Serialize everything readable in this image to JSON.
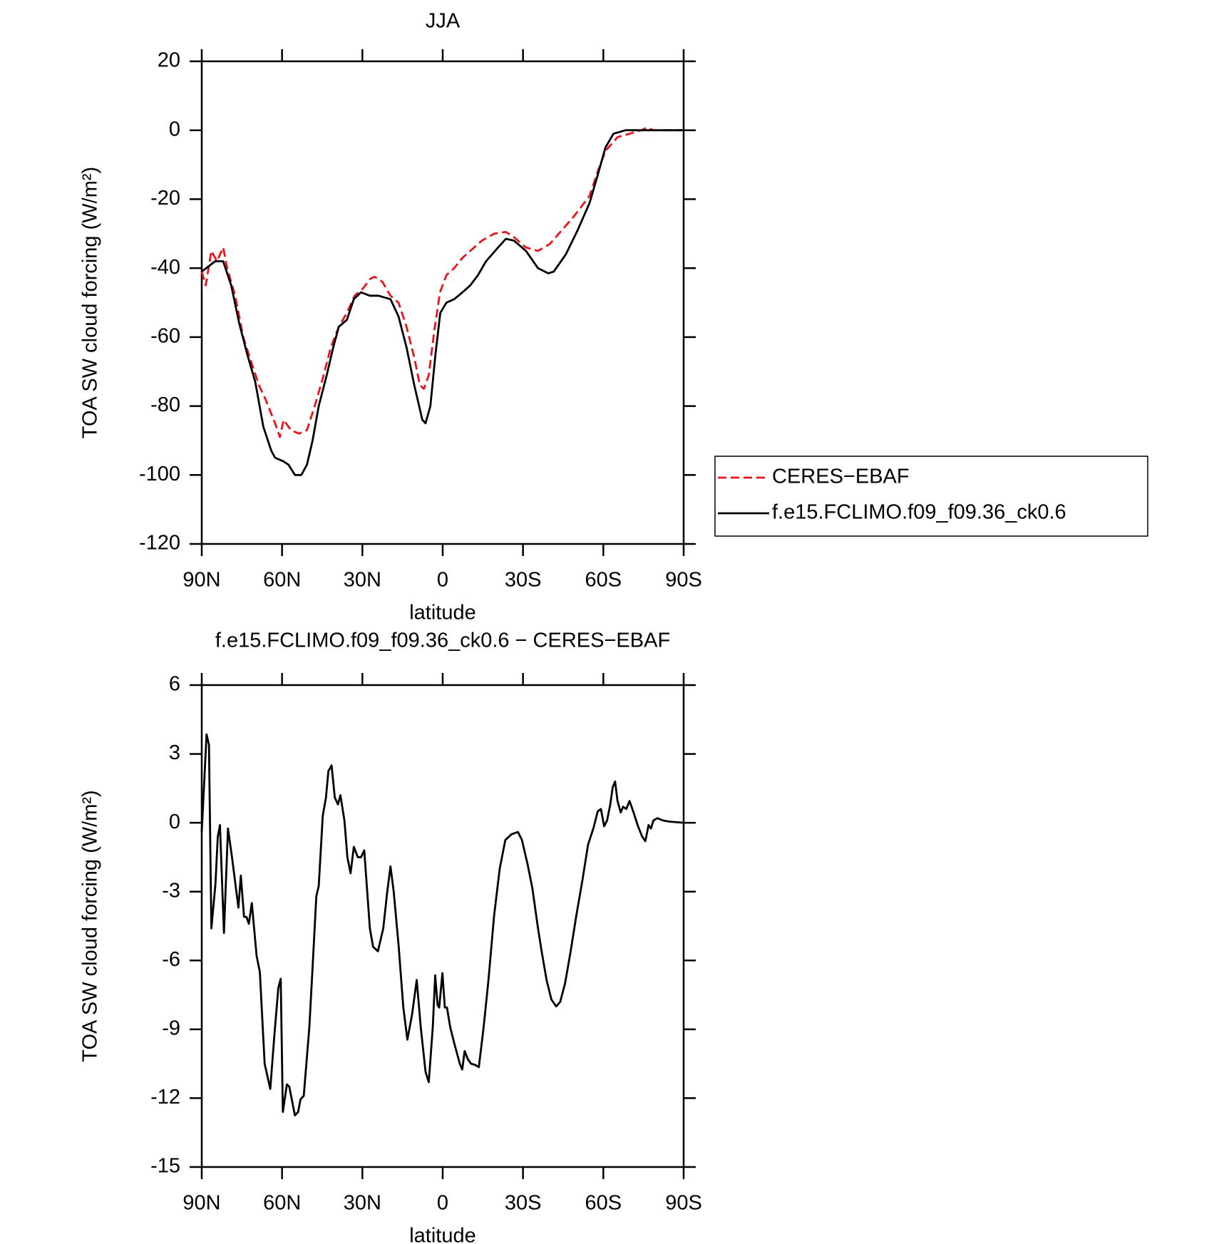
{
  "chart_data": [
    {
      "type": "line",
      "title": "JJA",
      "x_label": "latitude",
      "y_label": "TOA SW cloud forcing (W/m²)",
      "xlim": [
        90,
        -90
      ],
      "xticks": [
        {
          "value": 90,
          "label": "90N"
        },
        {
          "value": 60,
          "label": "60N"
        },
        {
          "value": 30,
          "label": "30N"
        },
        0,
        {
          "value": -30,
          "label": "30S"
        },
        {
          "value": -60,
          "label": "60S"
        },
        {
          "value": -90,
          "label": "90S"
        }
      ],
      "ylim": [
        -120,
        20
      ],
      "yticks": [
        -120,
        -100,
        -80,
        -60,
        -40,
        -20,
        0,
        20
      ],
      "legend": "right",
      "series": [
        {
          "name": "CERES−EBAF",
          "color": "#e8141c",
          "line_style": "dashed",
          "x": [
            90,
            88.5,
            86.4,
            84.3,
            82,
            80.5,
            77.5,
            74.5,
            71.6,
            68.6,
            66.2,
            62.6,
            60.8,
            59.4,
            56.7,
            53.7,
            50.7,
            47.8,
            44.8,
            41.8,
            38.8,
            35.8,
            32.9,
            29.9,
            26.9,
            25.4,
            22.5,
            19.5,
            16.5,
            13.5,
            10.6,
            8.5,
            7,
            5.2,
            3.1,
            1,
            -1.4,
            -4.3,
            -7.4,
            -10.3,
            -14.7,
            -19.2,
            -23.6,
            -26.6,
            -31.1,
            -35.6,
            -40,
            -44.5,
            -49,
            -54.9,
            -57.9,
            -60.8,
            -65.3,
            -69.8,
            -74.2,
            -76.3,
            -78.7,
            -90
          ],
          "values": [
            -41,
            -45,
            -35,
            -38,
            -34,
            -40,
            -48,
            -60,
            -67,
            -74,
            -78,
            -85,
            -89,
            -84,
            -87,
            -88,
            -87,
            -80,
            -72,
            -63,
            -57,
            -53,
            -48,
            -46,
            -43,
            -42.5,
            -44,
            -48,
            -50,
            -57,
            -66,
            -74,
            -75,
            -71,
            -58,
            -47,
            -42,
            -40,
            -37,
            -35,
            -32,
            -30,
            -29.5,
            -31,
            -34,
            -35,
            -33,
            -29,
            -25,
            -19,
            -12,
            -6,
            -2,
            -1,
            0,
            0.8,
            0,
            0
          ]
        },
        {
          "name": "f.e15.FCLIMO.f09_f09.36_ck0.6",
          "color": "#000000",
          "line_style": "solid",
          "x": [
            90,
            85,
            82,
            79,
            76,
            73,
            70,
            67,
            64,
            62.6,
            59.6,
            57.6,
            55.2,
            52.8,
            50.7,
            48.6,
            46.3,
            43.3,
            40.9,
            38.8,
            35.8,
            33.2,
            30.5,
            27.2,
            24,
            19.5,
            16.5,
            13.5,
            10.6,
            7.6,
            6.4,
            4.6,
            2.7,
            0.9,
            -1.4,
            -4.3,
            -7.4,
            -10.3,
            -13.2,
            -16.2,
            -20.7,
            -23.6,
            -26.6,
            -31.1,
            -35.6,
            -39.4,
            -41.5,
            -46,
            -50.4,
            -54.9,
            -57.9,
            -60.8,
            -63.8,
            -68.3,
            -90
          ],
          "values": [
            -41,
            -38,
            -38,
            -45,
            -56,
            -65,
            -73,
            -86,
            -93,
            -95,
            -96,
            -97,
            -100,
            -100,
            -97,
            -90,
            -80,
            -71,
            -63,
            -57,
            -55,
            -49,
            -47,
            -48,
            -48,
            -49,
            -54,
            -63,
            -74,
            -84,
            -85,
            -80,
            -65,
            -53,
            -50,
            -49,
            -47,
            -45,
            -42,
            -38,
            -34,
            -31.5,
            -32,
            -35,
            -40,
            -41.5,
            -41,
            -36,
            -29,
            -21,
            -13,
            -5,
            -1,
            0,
            0
          ]
        }
      ]
    },
    {
      "type": "line",
      "title": "f.e15.FCLIMO.f09_f09.36_ck0.6 − CERES−EBAF",
      "x_label": "latitude",
      "y_label": "TOA SW cloud forcing (W/m²)",
      "xlim": [
        90,
        -90
      ],
      "xticks": [
        {
          "value": 90,
          "label": "90N"
        },
        {
          "value": 60,
          "label": "60N"
        },
        {
          "value": 30,
          "label": "30N"
        },
        0,
        {
          "value": -30,
          "label": "30S"
        },
        {
          "value": -60,
          "label": "60S"
        },
        {
          "value": -90,
          "label": "90S"
        }
      ],
      "ylim": [
        -15,
        6
      ],
      "yticks": [
        -15,
        -12,
        -9,
        -6,
        -3,
        0,
        3,
        6
      ],
      "x": [
        90,
        88.2,
        87.3,
        86.4,
        84.9,
        84,
        83.2,
        81.7,
        80.2,
        78.7,
        76.3,
        75.4,
        74.2,
        73.3,
        72.4,
        71.3,
        69.5,
        68.3,
        66.5,
        64.4,
        62.9,
        61.4,
        60.5,
        59.7,
        58.2,
        57.3,
        55.2,
        54,
        53.1,
        51.9,
        49.8,
        48.6,
        47.2,
        46.3,
        44.8,
        43.6,
        42.7,
        41.5,
        40.3,
        39.1,
        38.2,
        36.7,
        35.6,
        34.4,
        33.2,
        31.7,
        30.5,
        29.3,
        27.2,
        26,
        24.2,
        22.2,
        20.7,
        19.5,
        18.3,
        16.5,
        14.7,
        13.2,
        11.5,
        9.7,
        8.2,
        6.4,
        5.2,
        3.7,
        2.8,
        1.9,
        1.3,
        0.1,
        -0.8,
        -1.6,
        -2.8,
        -4.3,
        -6.4,
        -7.3,
        -8.2,
        -9.4,
        -10.6,
        -12.1,
        -13.5,
        -15.3,
        -17.1,
        -19.2,
        -21.3,
        -23.4,
        -25.7,
        -28.1,
        -29.6,
        -31.7,
        -33.5,
        -35.6,
        -37.1,
        -38.8,
        -40.6,
        -42.4,
        -43.9,
        -45.7,
        -47.8,
        -49.9,
        -52.2,
        -54.3,
        -56.4,
        -57.9,
        -59.1,
        -60.3,
        -61.4,
        -62.6,
        -63.5,
        -64.4,
        -65.3,
        -66.5,
        -67.4,
        -68.6,
        -69.8,
        -71.3,
        -72.8,
        -74.5,
        -75.7,
        -76.9,
        -77.8,
        -78.7,
        -80.2,
        -82.3,
        -84.7,
        -90
      ],
      "series": [
        {
          "color": "#000000",
          "line_style": "solid",
          "values": [
            -0.4,
            3.85,
            3.4,
            -4.6,
            -2.7,
            -0.6,
            -0.1,
            -4.8,
            -0.25,
            -1.5,
            -3.7,
            -2.3,
            -4.1,
            -4.1,
            -4.4,
            -3.5,
            -5.8,
            -6.5,
            -10.5,
            -11.6,
            -9.3,
            -7.2,
            -6.8,
            -12.6,
            -11.4,
            -11.5,
            -12.75,
            -12.6,
            -12.05,
            -11.9,
            -8.9,
            -6.3,
            -3.2,
            -2.75,
            0.3,
            1.1,
            2.25,
            2.5,
            1.1,
            0.8,
            1.2,
            0.1,
            -1.5,
            -2.2,
            -1.05,
            -1.5,
            -1.5,
            -1.2,
            -4.6,
            -5.4,
            -5.6,
            -4.6,
            -3,
            -1.9,
            -3,
            -5.3,
            -8.05,
            -9.45,
            -8.4,
            -6.85,
            -8.9,
            -10.85,
            -11.3,
            -8.9,
            -6.65,
            -7.95,
            -8.05,
            -6.55,
            -8.05,
            -8.05,
            -8.9,
            -9.6,
            -10.5,
            -10.75,
            -9.95,
            -10.3,
            -10.5,
            -10.55,
            -10.65,
            -8.9,
            -6.85,
            -4.05,
            -2,
            -0.75,
            -0.5,
            -0.4,
            -0.75,
            -1.8,
            -2.85,
            -4.6,
            -5.7,
            -6.85,
            -7.7,
            -8,
            -7.8,
            -7,
            -5.6,
            -4.05,
            -2.5,
            -0.95,
            -0.2,
            0.5,
            0.6,
            -0.15,
            0.1,
            0.8,
            1.55,
            1.8,
            0.95,
            0.45,
            0.7,
            0.6,
            0.95,
            0.45,
            -0.1,
            -0.6,
            -0.8,
            -0.1,
            -0.25,
            0.1,
            0.2,
            0.1,
            0.05,
            0
          ]
        }
      ]
    }
  ]
}
